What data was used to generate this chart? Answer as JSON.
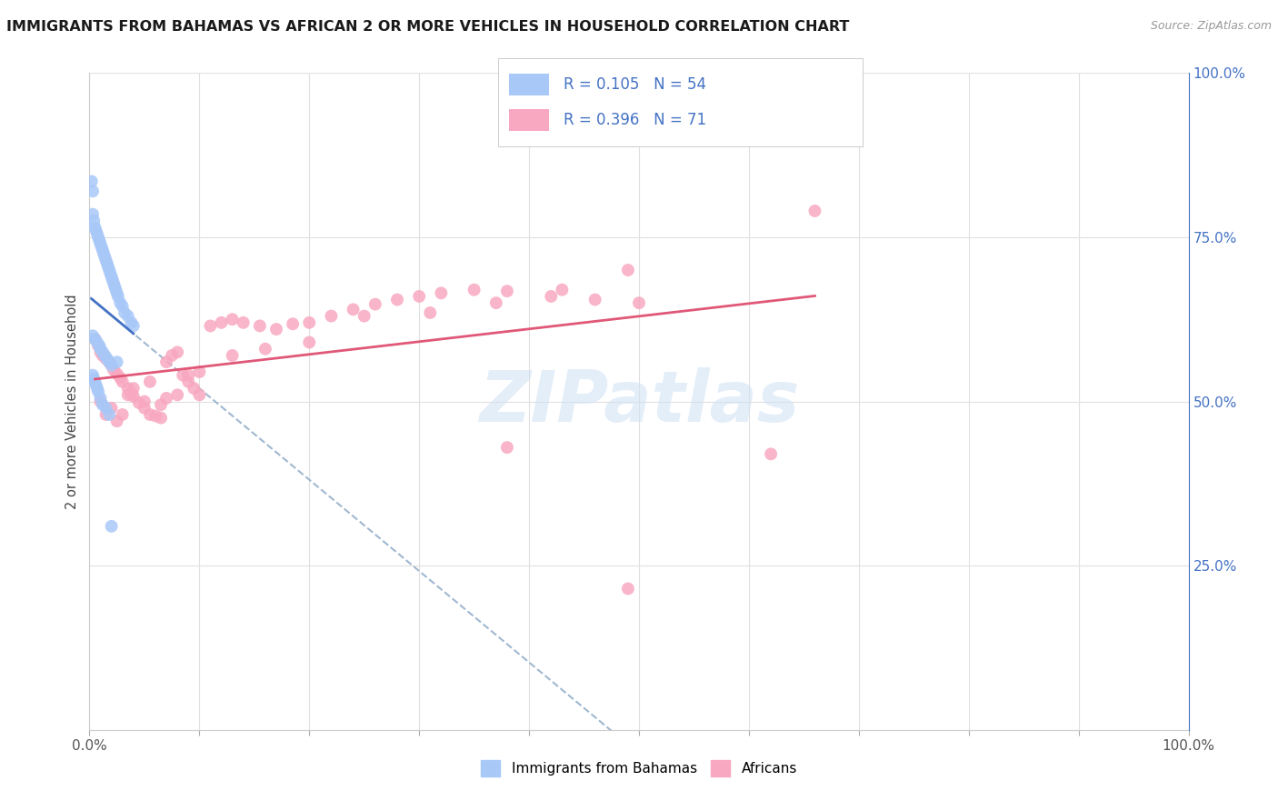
{
  "title": "IMMIGRANTS FROM BAHAMAS VS AFRICAN 2 OR MORE VEHICLES IN HOUSEHOLD CORRELATION CHART",
  "source_text": "Source: ZipAtlas.com",
  "ylabel": "2 or more Vehicles in Household",
  "xlim": [
    0.0,
    1.0
  ],
  "ylim": [
    0.0,
    1.0
  ],
  "watermark": "ZIPatlas",
  "legend_R1": "R = 0.105",
  "legend_N1": "N = 54",
  "legend_R2": "R = 0.396",
  "legend_N2": "N = 71",
  "bahamas_color": "#a8c8f8",
  "african_color": "#f8a8c0",
  "trendline_bahamas_color": "#4472c4",
  "trendline_african_color": "#e05878",
  "dashed_line_color": "#a0b8d0",
  "grid_color": "#e0e0e0",
  "legend_text_color": "#4472c4",
  "title_color": "#1a1a1a",
  "right_axis_color": "#4472c4",
  "source_color": "#999999",
  "bahamas_x": [
    0.003,
    0.004,
    0.005,
    0.006,
    0.007,
    0.008,
    0.009,
    0.01,
    0.011,
    0.012,
    0.013,
    0.014,
    0.015,
    0.016,
    0.017,
    0.018,
    0.019,
    0.02,
    0.021,
    0.022,
    0.023,
    0.024,
    0.025,
    0.026,
    0.028,
    0.03,
    0.032,
    0.035,
    0.038,
    0.04,
    0.003,
    0.005,
    0.007,
    0.009,
    0.01,
    0.012,
    0.014,
    0.016,
    0.018,
    0.02,
    0.003,
    0.004,
    0.005,
    0.006,
    0.007,
    0.008,
    0.01,
    0.012,
    0.015,
    0.018,
    0.002,
    0.003,
    0.025,
    0.02
  ],
  "bahamas_y": [
    0.785,
    0.775,
    0.765,
    0.76,
    0.755,
    0.75,
    0.745,
    0.74,
    0.735,
    0.73,
    0.725,
    0.72,
    0.715,
    0.71,
    0.705,
    0.7,
    0.695,
    0.69,
    0.685,
    0.68,
    0.675,
    0.67,
    0.665,
    0.66,
    0.65,
    0.645,
    0.635,
    0.63,
    0.62,
    0.615,
    0.6,
    0.595,
    0.59,
    0.585,
    0.58,
    0.575,
    0.57,
    0.565,
    0.56,
    0.555,
    0.54,
    0.535,
    0.53,
    0.525,
    0.52,
    0.515,
    0.505,
    0.495,
    0.49,
    0.48,
    0.835,
    0.82,
    0.56,
    0.31
  ],
  "african_x": [
    0.005,
    0.008,
    0.01,
    0.012,
    0.015,
    0.018,
    0.02,
    0.022,
    0.025,
    0.028,
    0.03,
    0.035,
    0.038,
    0.04,
    0.045,
    0.05,
    0.055,
    0.06,
    0.065,
    0.07,
    0.075,
    0.08,
    0.085,
    0.09,
    0.095,
    0.1,
    0.11,
    0.12,
    0.13,
    0.14,
    0.155,
    0.17,
    0.185,
    0.2,
    0.22,
    0.24,
    0.26,
    0.28,
    0.3,
    0.32,
    0.35,
    0.38,
    0.42,
    0.46,
    0.5,
    0.01,
    0.02,
    0.03,
    0.04,
    0.055,
    0.07,
    0.09,
    0.015,
    0.025,
    0.035,
    0.05,
    0.065,
    0.08,
    0.1,
    0.13,
    0.16,
    0.2,
    0.25,
    0.31,
    0.37,
    0.43,
    0.49,
    0.38,
    0.62,
    0.66,
    0.49
  ],
  "african_y": [
    0.595,
    0.585,
    0.575,
    0.57,
    0.565,
    0.56,
    0.555,
    0.548,
    0.542,
    0.536,
    0.53,
    0.52,
    0.512,
    0.508,
    0.498,
    0.49,
    0.48,
    0.478,
    0.475,
    0.56,
    0.57,
    0.575,
    0.54,
    0.53,
    0.52,
    0.51,
    0.615,
    0.62,
    0.625,
    0.62,
    0.615,
    0.61,
    0.618,
    0.62,
    0.63,
    0.64,
    0.648,
    0.655,
    0.66,
    0.665,
    0.67,
    0.668,
    0.66,
    0.655,
    0.65,
    0.5,
    0.49,
    0.48,
    0.52,
    0.53,
    0.505,
    0.54,
    0.48,
    0.47,
    0.51,
    0.5,
    0.495,
    0.51,
    0.545,
    0.57,
    0.58,
    0.59,
    0.63,
    0.635,
    0.65,
    0.67,
    0.7,
    0.43,
    0.42,
    0.79,
    0.215
  ],
  "xtick_positions": [
    0.0,
    0.1,
    0.2,
    0.3,
    0.4,
    0.5,
    0.6,
    0.7,
    0.8,
    0.9,
    1.0
  ],
  "ytick_right": [
    0.25,
    0.5,
    0.75,
    1.0
  ],
  "ytick_right_labels": [
    "25.0%",
    "50.0%",
    "75.0%",
    "100.0%"
  ]
}
